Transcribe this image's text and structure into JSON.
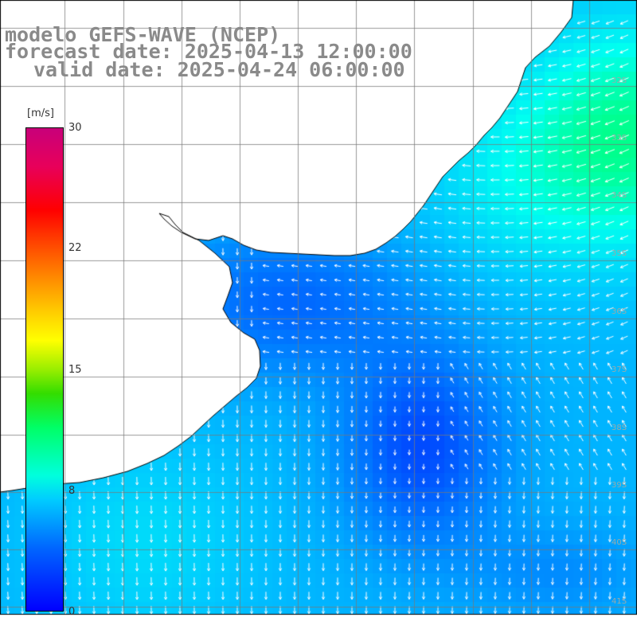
{
  "title": {
    "line1": "modelo GEFS-WAVE (NCEP)",
    "line2": "forecast date: 2025-04-13 12:00:00",
    "line3": "valid date: 2025-04-24 06:00:00"
  },
  "colorbar": {
    "unit": "[m/s]",
    "ticks": [
      "30",
      "22",
      "15",
      "8",
      "0"
    ],
    "colors": [
      "#0000ff",
      "#00ccff",
      "#00ff66",
      "#ffff00",
      "#ff8000",
      "#ff0000",
      "#c8007a"
    ]
  },
  "latitude_labels": [
    "32S",
    "33S",
    "34S",
    "35S",
    "36S",
    "37S",
    "38S",
    "39S",
    "40S",
    "41S"
  ],
  "colors": {
    "land": "#ffffff",
    "grid": "#888888",
    "coast": "#000000",
    "arrow": "#ffffff"
  }
}
